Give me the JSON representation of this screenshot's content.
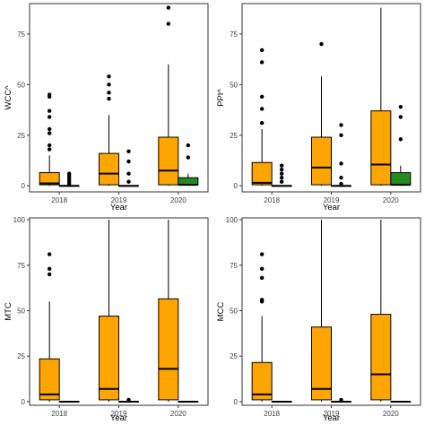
{
  "colors": {
    "orange": "#ffa500",
    "green": "#228b22",
    "outline": "#000000"
  },
  "chart_data": [
    {
      "type": "box",
      "ylabel": "WCC^",
      "xlabel": "Year",
      "categories": [
        "2018",
        "2019",
        "2020"
      ],
      "ylim": [
        -3,
        90
      ],
      "yticks": [
        0,
        25,
        50,
        75
      ],
      "series": [
        {
          "color": "orange",
          "boxes": [
            {
              "min": 0,
              "q1": 0.5,
              "median": 1.2,
              "q3": 6.5,
              "max": 15,
              "outliers": [
                18,
                20,
                26,
                28,
                34,
                37,
                44,
                45
              ]
            },
            {
              "min": 0,
              "q1": 0.5,
              "median": 6,
              "q3": 16,
              "max": 35,
              "outliers": [
                43,
                46,
                50,
                54
              ]
            },
            {
              "min": 0,
              "q1": 0.5,
              "median": 7.5,
              "q3": 24,
              "max": 60,
              "outliers": [
                80,
                88
              ]
            }
          ]
        },
        {
          "color": "outline",
          "boxes": [
            {
              "min": 0,
              "q1": 0,
              "median": 0,
              "q3": 0,
              "max": 0,
              "outliers": [
                1,
                2,
                3,
                4,
                5,
                6
              ]
            },
            {
              "min": 0,
              "q1": 0,
              "median": 0,
              "q3": 0,
              "max": 0,
              "outliers": [
                2,
                6,
                12,
                17
              ]
            },
            {
              "min": 0,
              "q1": 0.5,
              "median": 0.5,
              "q3": 4,
              "max": 6,
              "outliers": [
                14,
                20
              ],
              "color": "green"
            }
          ]
        }
      ]
    },
    {
      "type": "box",
      "ylabel": "PPI^",
      "xlabel": "Year",
      "categories": [
        "2018",
        "2019",
        "2020"
      ],
      "ylim": [
        -3,
        90
      ],
      "yticks": [
        0,
        25,
        50,
        75
      ],
      "series": [
        {
          "color": "orange",
          "boxes": [
            {
              "min": 0,
              "q1": 0.5,
              "median": 1.5,
              "q3": 11.5,
              "max": 28,
              "outliers": [
                31,
                38,
                44,
                61,
                67
              ]
            },
            {
              "min": 0,
              "q1": 0.5,
              "median": 9,
              "q3": 24,
              "max": 54,
              "outliers": [
                70
              ]
            },
            {
              "min": 0,
              "q1": 0.5,
              "median": 10.5,
              "q3": 37,
              "max": 88,
              "outliers": []
            }
          ]
        },
        {
          "color": "outline",
          "boxes": [
            {
              "min": 0,
              "q1": 0,
              "median": 0,
              "q3": 0,
              "max": 0,
              "outliers": [
                2,
                4,
                6,
                8,
                10
              ]
            },
            {
              "min": 0,
              "q1": 0,
              "median": 0,
              "q3": 0,
              "max": 0,
              "outliers": [
                1,
                4,
                11,
                25,
                30
              ]
            },
            {
              "min": 0,
              "q1": 0.5,
              "median": 0.5,
              "q3": 6.5,
              "max": 10,
              "outliers": [
                23,
                34,
                39
              ],
              "color": "green"
            }
          ]
        }
      ]
    },
    {
      "type": "box",
      "ylabel": "MTC",
      "xlabel": "Year",
      "categories": [
        "2018",
        "2019",
        "2020"
      ],
      "ylim": [
        -2,
        101
      ],
      "yticks": [
        0,
        25,
        50,
        75,
        100
      ],
      "series": [
        {
          "color": "orange",
          "boxes": [
            {
              "min": 0,
              "q1": 1,
              "median": 4,
              "q3": 23.5,
              "max": 55,
              "outliers": [
                70,
                73,
                81
              ]
            },
            {
              "min": 0,
              "q1": 1,
              "median": 7,
              "q3": 47,
              "max": 100,
              "outliers": []
            },
            {
              "min": 0,
              "q1": 1,
              "median": 18,
              "q3": 56.5,
              "max": 100,
              "outliers": []
            }
          ]
        },
        {
          "color": "outline",
          "boxes": [
            {
              "min": 0,
              "q1": 0,
              "median": 0,
              "q3": 0,
              "max": 0,
              "outliers": []
            },
            {
              "min": 0,
              "q1": 0,
              "median": 0,
              "q3": 0,
              "max": 0,
              "outliers": [
                1
              ]
            },
            {
              "min": 0,
              "q1": 0,
              "median": 0,
              "q3": 0,
              "max": 0,
              "outliers": []
            }
          ]
        }
      ]
    },
    {
      "type": "box",
      "ylabel": "MCC",
      "xlabel": "Year",
      "categories": [
        "2018",
        "2019",
        "2020"
      ],
      "ylim": [
        -2,
        101
      ],
      "yticks": [
        0,
        25,
        50,
        75,
        100
      ],
      "series": [
        {
          "color": "orange",
          "boxes": [
            {
              "min": 0,
              "q1": 1,
              "median": 4,
              "q3": 21.5,
              "max": 47,
              "outliers": [
                55,
                56,
                68,
                73,
                81
              ]
            },
            {
              "min": 0,
              "q1": 1,
              "median": 7,
              "q3": 41,
              "max": 100,
              "outliers": []
            },
            {
              "min": 0,
              "q1": 1,
              "median": 15,
              "q3": 48,
              "max": 100,
              "outliers": []
            }
          ]
        },
        {
          "color": "outline",
          "boxes": [
            {
              "min": 0,
              "q1": 0,
              "median": 0,
              "q3": 0,
              "max": 0,
              "outliers": []
            },
            {
              "min": 0,
              "q1": 0,
              "median": 0,
              "q3": 0,
              "max": 0,
              "outliers": [
                1
              ]
            },
            {
              "min": 0,
              "q1": 0,
              "median": 0,
              "q3": 0,
              "max": 0,
              "outliers": []
            }
          ]
        }
      ]
    }
  ]
}
